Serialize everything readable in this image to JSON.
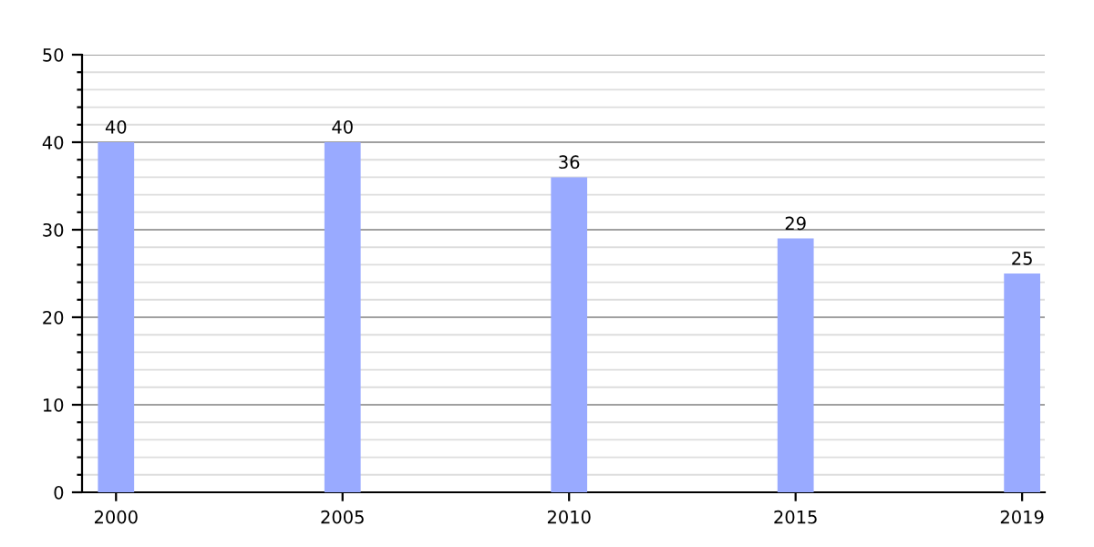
{
  "chart_data": {
    "type": "bar",
    "categories": [
      "2000",
      "2005",
      "2010",
      "2015",
      "2019"
    ],
    "values": [
      40,
      40,
      36,
      29,
      25
    ],
    "color": "#99aaff",
    "data_labels": true,
    "grid": "y",
    "ylim": [
      0,
      50
    ],
    "yticks": [
      0,
      {
        "value": 2,
        "label": null
      },
      {
        "value": 4,
        "label": null
      },
      {
        "value": 6,
        "label": null
      },
      {
        "value": 8,
        "label": null
      },
      10,
      {
        "value": 12,
        "label": null
      },
      {
        "value": 14,
        "label": null
      },
      {
        "value": 16,
        "label": null
      },
      {
        "value": 18,
        "label": null
      },
      20,
      {
        "value": 22,
        "label": null
      },
      {
        "value": 24,
        "label": null
      },
      {
        "value": 26,
        "label": null
      },
      {
        "value": 28,
        "label": null
      },
      30,
      {
        "value": 32,
        "label": null
      },
      {
        "value": 34,
        "label": null
      },
      {
        "value": 36,
        "label": null
      },
      {
        "value": 38,
        "label": null
      },
      40,
      {
        "value": 42,
        "label": null
      },
      {
        "value": 44,
        "label": null
      },
      {
        "value": 46,
        "label": null
      },
      {
        "value": 48,
        "label": null
      },
      50
    ]
  }
}
